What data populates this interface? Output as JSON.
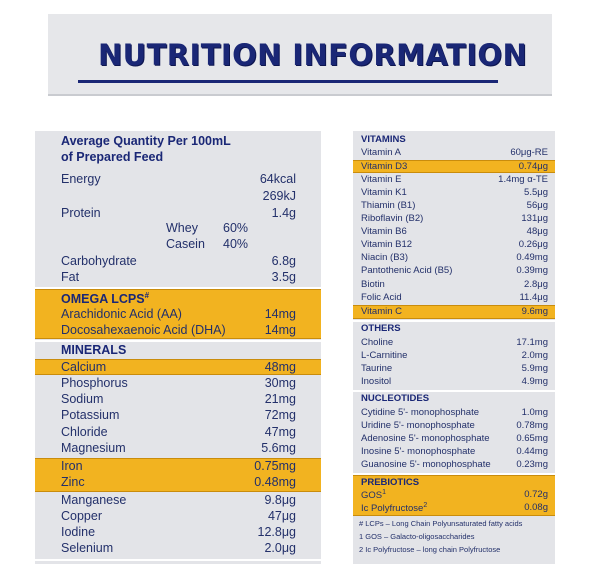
{
  "title": "NUTRITION INFORMATION",
  "left": {
    "heading_line1": "Average Quantity Per 100mL",
    "heading_line2": "of Prepared Feed",
    "energy": {
      "label": "Energy",
      "value1": "64kcal",
      "value2": "269kJ"
    },
    "protein": {
      "label": "Protein",
      "value": "1.4g",
      "whey": {
        "label": "Whey",
        "value": "60%"
      },
      "casein": {
        "label": "Casein",
        "value": "40%"
      }
    },
    "carbohydrate": {
      "label": "Carbohydrate",
      "value": "6.8g"
    },
    "fat": {
      "label": "Fat",
      "value": "3.5g"
    },
    "omega": {
      "heading": "OMEGA LCPS",
      "sup": "#",
      "items": [
        {
          "label": "Arachidonic Acid (AA)",
          "value": "14mg"
        },
        {
          "label": "Docosahexaenoic Acid (DHA)",
          "value": "14mg"
        }
      ]
    },
    "minerals": {
      "heading": "MINERALS",
      "items": [
        {
          "label": "Calcium",
          "value": "48mg"
        },
        {
          "label": "Phosphorus",
          "value": "30mg"
        },
        {
          "label": "Sodium",
          "value": "21mg"
        },
        {
          "label": "Potassium",
          "value": "72mg"
        },
        {
          "label": "Chloride",
          "value": "47mg"
        },
        {
          "label": "Magnesium",
          "value": "5.6mg"
        },
        {
          "label": "Iron",
          "value": "0.75mg"
        },
        {
          "label": "Zinc",
          "value": "0.48mg"
        },
        {
          "label": "Manganese",
          "value": "9.8μg"
        },
        {
          "label": "Copper",
          "value": "47μg"
        },
        {
          "label": "Iodine",
          "value": "12.8μg"
        },
        {
          "label": "Selenium",
          "value": "2.0μg"
        }
      ]
    }
  },
  "right": {
    "vitamins": {
      "heading": "VITAMINS",
      "items": [
        {
          "label": "Vitamin A",
          "value": "60μg-RE"
        },
        {
          "label": "Vitamin D3",
          "value": "0.74μg"
        },
        {
          "label": "Vitamin E",
          "value": "1.4mg α-TE"
        },
        {
          "label": "Vitamin K1",
          "value": "5.5μg"
        },
        {
          "label": "Thiamin (B1)",
          "value": "56μg"
        },
        {
          "label": "Riboflavin (B2)",
          "value": "131μg"
        },
        {
          "label": "Vitamin B6",
          "value": "48μg"
        },
        {
          "label": "Vitamin B12",
          "value": "0.26μg"
        },
        {
          "label": "Niacin (B3)",
          "value": "0.49mg"
        },
        {
          "label": "Pantothenic Acid (B5)",
          "value": "0.39mg"
        },
        {
          "label": "Biotin",
          "value": "2.8μg"
        },
        {
          "label": "Folic Acid",
          "value": "11.4μg"
        },
        {
          "label": "Vitamin C",
          "value": "9.6mg"
        }
      ]
    },
    "others": {
      "heading": "OTHERS",
      "items": [
        {
          "label": "Choline",
          "value": "17.1mg"
        },
        {
          "label": "L-Carnitine",
          "value": "2.0mg"
        },
        {
          "label": "Taurine",
          "value": "5.9mg"
        },
        {
          "label": "Inositol",
          "value": "4.9mg"
        }
      ]
    },
    "nucleotides": {
      "heading": "NUCLEOTIDES",
      "items": [
        {
          "label": "Cytidine 5'- monophosphate",
          "value": "1.0mg"
        },
        {
          "label": "Uridine 5'- monophosphate",
          "value": "0.78mg"
        },
        {
          "label": "Adenosine 5'- monophosphate",
          "value": "0.65mg"
        },
        {
          "label": "Inosine 5'- monophosphate",
          "value": "0.44mg"
        },
        {
          "label": "Guanosine 5'- monophosphate",
          "value": "0.23mg"
        }
      ]
    },
    "prebiotics": {
      "heading": "PREBIOTICS",
      "items": [
        {
          "label": "GOS",
          "sup": "1",
          "value": "0.72g"
        },
        {
          "label": "Ic Polyfructose",
          "sup": "2",
          "value": "0.08g"
        }
      ]
    },
    "footnotes": [
      "# LCPs – Long Chain Polyunsaturated fatty acids",
      "1 GOS – Galacto-oligosaccharides",
      "2 Ic Polyfructose – long chain Polyfructose"
    ]
  },
  "colors": {
    "navy": "#1a2776",
    "highlight": "#f2b320",
    "panel": "#e3e4e8"
  }
}
